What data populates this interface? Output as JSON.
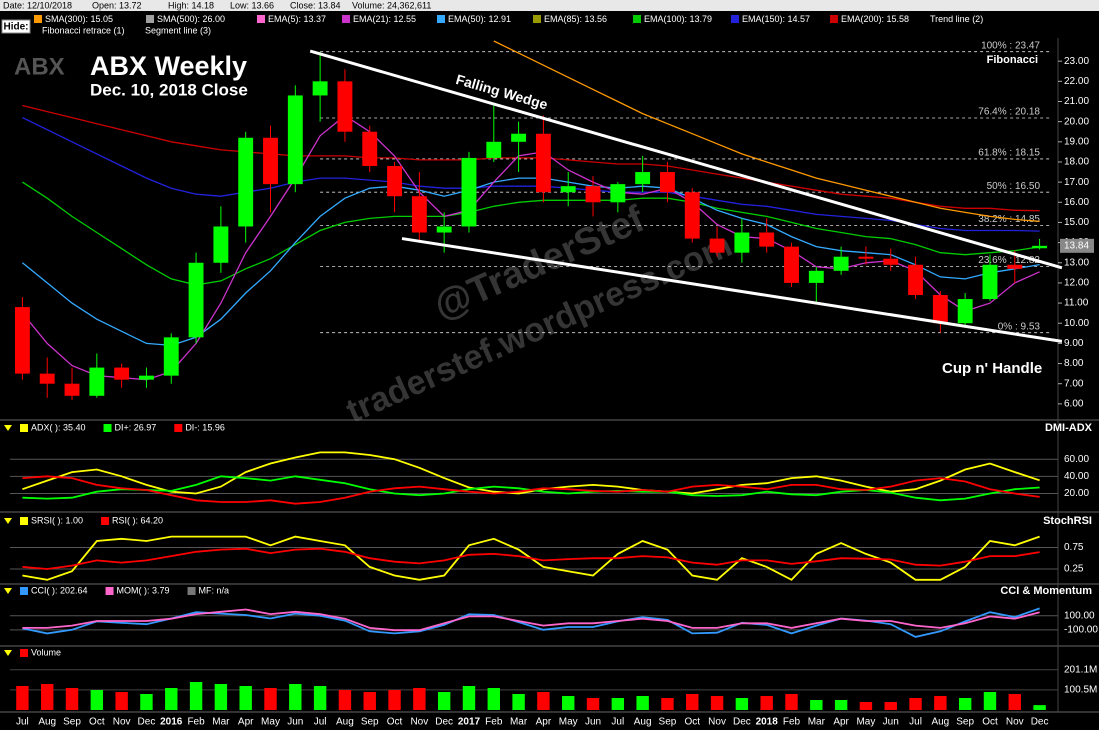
{
  "header": {
    "fields": [
      "Date: 12/10/2018",
      "Open: 13.72",
      "High: 14.18",
      "Low: 13.66",
      "Close: 13.84",
      "Volume: 24,362,611"
    ],
    "hide_button": "Hide:",
    "legend": [
      {
        "label": "SMA(300): 15.05",
        "color": "#ff9900"
      },
      {
        "label": "SMA(500): 26.00",
        "color": "#a0a0a0"
      },
      {
        "label": "EMA(5): 13.37",
        "color": "#ff66cc"
      },
      {
        "label": "EMA(21): 12.55",
        "color": "#cc33cc"
      },
      {
        "label": "EMA(50): 12.91",
        "color": "#33aaff"
      },
      {
        "label": "EMA(85): 13.56",
        "color": "#999900"
      },
      {
        "label": "EMA(100): 13.79",
        "color": "#00cc00"
      },
      {
        "label": "EMA(150): 14.57",
        "color": "#2222dd"
      },
      {
        "label": "EMA(200): 15.58",
        "color": "#cc0000"
      }
    ],
    "tools": [
      "Trend line (2)",
      "Fibonacci retrace (1)",
      "Segment line (3)"
    ]
  },
  "chart_data": [
    {
      "type": "candlestick",
      "symbol": "ABX",
      "title": "ABX Weekly",
      "subtitle": "Dec. 10, 2018 Close",
      "categories": [
        "Jul",
        "Aug",
        "Sep",
        "Oct",
        "Nov",
        "Dec",
        "2016",
        "Feb",
        "Mar",
        "Apr",
        "May",
        "Jun",
        "Jul",
        "Aug",
        "Sep",
        "Oct",
        "Nov",
        "Dec",
        "2017",
        "Feb",
        "Mar",
        "Apr",
        "May",
        "Jun",
        "Jul",
        "Aug",
        "Sep",
        "Oct",
        "Nov",
        "Dec",
        "2018",
        "Feb",
        "Mar",
        "Apr",
        "May",
        "Jun",
        "Jul",
        "Aug",
        "Sep",
        "Oct",
        "Nov",
        "Dec"
      ],
      "open": [
        10.8,
        7.5,
        7.0,
        6.4,
        7.8,
        7.2,
        7.4,
        9.3,
        13.0,
        14.8,
        19.2,
        16.9,
        21.3,
        22.0,
        19.5,
        17.8,
        16.3,
        14.5,
        14.8,
        18.2,
        19.0,
        19.4,
        16.5,
        16.8,
        16.0,
        16.9,
        17.5,
        16.5,
        14.2,
        13.5,
        14.5,
        13.8,
        12.0,
        12.6,
        13.3,
        13.2,
        12.9,
        11.4,
        10.0,
        11.2,
        12.9,
        13.72
      ],
      "high": [
        11.3,
        8.3,
        7.8,
        8.5,
        8.0,
        7.8,
        9.5,
        13.5,
        15.8,
        19.5,
        19.8,
        21.8,
        23.47,
        22.6,
        19.8,
        18.0,
        17.5,
        15.5,
        18.5,
        20.8,
        20.0,
        20.3,
        17.5,
        17.3,
        17.0,
        18.3,
        18.0,
        16.7,
        14.8,
        15.2,
        15.2,
        14.0,
        12.8,
        13.8,
        13.8,
        13.7,
        13.3,
        11.6,
        11.5,
        13.4,
        13.6,
        14.18
      ],
      "low": [
        7.2,
        6.3,
        6.2,
        6.3,
        6.8,
        6.8,
        7.0,
        9.0,
        12.5,
        14.0,
        15.5,
        16.5,
        20.0,
        19.0,
        17.5,
        15.5,
        14.0,
        13.5,
        14.5,
        18.0,
        17.5,
        16.0,
        15.8,
        15.3,
        15.5,
        16.5,
        16.0,
        14.0,
        13.3,
        13.0,
        13.5,
        11.8,
        11.0,
        12.4,
        12.9,
        12.6,
        11.2,
        9.53,
        9.8,
        11.1,
        12.0,
        13.66
      ],
      "close": [
        7.5,
        7.0,
        6.4,
        7.8,
        7.2,
        7.4,
        9.3,
        13.0,
        14.8,
        19.2,
        16.9,
        21.3,
        22.0,
        19.5,
        17.8,
        16.3,
        14.5,
        14.8,
        18.2,
        19.0,
        19.4,
        16.5,
        16.8,
        16.0,
        16.9,
        17.5,
        16.5,
        14.2,
        13.5,
        14.5,
        13.8,
        12.0,
        12.6,
        13.3,
        13.2,
        12.9,
        11.4,
        10.0,
        11.2,
        12.9,
        12.7,
        13.84
      ],
      "up_color": "#00ff00",
      "down_color": "#ff0000",
      "ylim": [
        5.2,
        24.05
      ],
      "yticks": [
        {
          "value": 6,
          "label": "6.00"
        },
        {
          "value": 7,
          "label": "7.00"
        },
        {
          "value": 8,
          "label": "8.00"
        },
        {
          "value": 9,
          "label": "9.00"
        },
        {
          "value": 10,
          "label": "10.00"
        },
        {
          "value": 11,
          "label": "11.00"
        },
        {
          "value": 12,
          "label": "12.00"
        },
        {
          "value": 13,
          "label": "13.00"
        },
        {
          "value": 14,
          "label": "14.00"
        },
        {
          "value": 15,
          "label": "15.00"
        },
        {
          "value": 16,
          "label": "16.00"
        },
        {
          "value": 17,
          "label": "17.00"
        },
        {
          "value": 18,
          "label": "18.00"
        },
        {
          "value": 19,
          "label": "19.00"
        },
        {
          "value": 20,
          "label": "20.00"
        },
        {
          "value": 21,
          "label": "21.00"
        },
        {
          "value": 22,
          "label": "22.00"
        },
        {
          "value": 23,
          "label": "23.00"
        }
      ],
      "last_price": {
        "value": 13.84,
        "label": "13.84"
      },
      "series": [
        {
          "color": "#cc0000",
          "values": [
            20.8,
            20.5,
            20.2,
            19.9,
            19.6,
            19.3,
            19.0,
            18.8,
            18.6,
            18.5,
            18.4,
            18.3,
            18.3,
            18.3,
            18.2,
            18.2,
            18.1,
            18.1,
            18.1,
            18.2,
            18.2,
            18.2,
            18.1,
            18.0,
            17.9,
            17.9,
            17.8,
            17.6,
            17.4,
            17.2,
            17.0,
            16.8,
            16.6,
            16.4,
            16.3,
            16.2,
            16.0,
            15.8,
            15.7,
            15.7,
            15.6,
            15.58
          ]
        },
        {
          "color": "#2222dd",
          "values": [
            20.2,
            19.6,
            19.0,
            18.4,
            17.8,
            17.2,
            16.7,
            16.4,
            16.3,
            16.5,
            16.7,
            17.0,
            17.2,
            17.2,
            17.1,
            17.0,
            16.8,
            16.7,
            16.7,
            16.8,
            16.8,
            16.8,
            16.7,
            16.6,
            16.5,
            16.5,
            16.5,
            16.3,
            16.1,
            15.9,
            15.8,
            15.6,
            15.4,
            15.3,
            15.2,
            15.1,
            14.9,
            14.7,
            14.6,
            14.6,
            14.6,
            14.57
          ]
        },
        {
          "color": "#00cc00",
          "values": [
            17.0,
            16.2,
            15.3,
            14.5,
            13.7,
            12.9,
            12.2,
            11.9,
            12.1,
            12.7,
            13.2,
            13.9,
            14.6,
            15.0,
            15.2,
            15.3,
            15.3,
            15.3,
            15.5,
            15.8,
            16.0,
            16.1,
            16.1,
            16.1,
            16.1,
            16.2,
            16.2,
            16.0,
            15.7,
            15.5,
            15.3,
            15.0,
            14.7,
            14.5,
            14.3,
            14.2,
            13.9,
            13.5,
            13.4,
            13.5,
            13.6,
            13.79
          ]
        },
        {
          "color": "#33aaff",
          "values": [
            13.0,
            12.0,
            11.0,
            10.2,
            9.6,
            9.0,
            8.9,
            9.3,
            10.2,
            11.5,
            12.6,
            14.0,
            15.3,
            16.2,
            16.7,
            16.8,
            16.6,
            16.3,
            16.6,
            17.0,
            17.2,
            17.2,
            17.0,
            16.8,
            16.7,
            16.8,
            16.7,
            16.2,
            15.6,
            15.2,
            14.9,
            14.3,
            13.8,
            13.6,
            13.5,
            13.4,
            12.9,
            12.3,
            12.2,
            12.5,
            12.7,
            12.91
          ]
        },
        {
          "color": "#cc33cc",
          "values": [
            10.5,
            9.0,
            7.9,
            7.4,
            7.3,
            7.2,
            7.6,
            9.0,
            11.0,
            13.5,
            15.3,
            17.2,
            19.3,
            20.3,
            19.5,
            18.3,
            16.5,
            15.3,
            15.6,
            17.0,
            18.3,
            18.5,
            17.6,
            17.0,
            16.5,
            16.4,
            16.7,
            16.0,
            14.9,
            14.3,
            14.2,
            13.6,
            12.8,
            12.7,
            13.0,
            13.1,
            12.6,
            11.4,
            10.6,
            11.0,
            12.0,
            12.55
          ]
        },
        {
          "color": "#ff9900",
          "values": [
            null,
            null,
            null,
            null,
            null,
            null,
            null,
            null,
            null,
            null,
            null,
            null,
            null,
            null,
            null,
            null,
            null,
            null,
            null,
            24.0,
            23.4,
            22.8,
            22.2,
            21.6,
            21.0,
            20.4,
            19.9,
            19.4,
            18.9,
            18.4,
            18.0,
            17.6,
            17.2,
            16.9,
            16.6,
            16.3,
            16.0,
            15.7,
            15.5,
            15.3,
            15.15,
            15.05
          ]
        }
      ],
      "fibonacci": {
        "title": "Fibonacci",
        "levels": [
          {
            "value": 23.47,
            "label": "100% : 23.47"
          },
          {
            "value": 20.18,
            "label": "76.4% : 20.18"
          },
          {
            "value": 18.15,
            "label": "61.8% : 18.15"
          },
          {
            "value": 16.5,
            "label": "50% : 16.50"
          },
          {
            "value": 14.85,
            "label": "38.2% : 14.85"
          },
          {
            "value": 12.82,
            "label": "23.6% : 12.82"
          },
          {
            "value": 9.53,
            "label": "0% : 9.53"
          }
        ]
      },
      "trendlines": [
        {
          "x": [
            11.6,
            41.9
          ],
          "y": [
            23.5,
            12.75
          ]
        },
        {
          "x": [
            15.3,
            41.9
          ],
          "y": [
            14.2,
            9.1
          ]
        }
      ],
      "annotations": [
        "Falling Wedge",
        "Cup n' Handle"
      ],
      "watermarks": [
        "@TraderStef",
        "traderstef.wordpress.com"
      ]
    },
    {
      "type": "line",
      "title": "DMI-ADX",
      "ylim": [
        3,
        86
      ],
      "yticks": [
        {
          "value": 20,
          "label": "20.00"
        },
        {
          "value": 40,
          "label": "40.00"
        },
        {
          "value": 60,
          "label": "60.00"
        }
      ],
      "series": [
        {
          "name": "ADX(   ): 35.40",
          "color": "#ffff00",
          "values": [
            25,
            35,
            45,
            48,
            40,
            30,
            22,
            20,
            28,
            45,
            55,
            62,
            68,
            68,
            65,
            60,
            50,
            38,
            27,
            22,
            20,
            25,
            28,
            30,
            28,
            24,
            22,
            20,
            25,
            30,
            32,
            38,
            40,
            35,
            28,
            22,
            25,
            35,
            48,
            55,
            45,
            35.4
          ]
        },
        {
          "name": "DI+: 26.97",
          "color": "#00ff00",
          "values": [
            15,
            14,
            15,
            22,
            25,
            24,
            23,
            30,
            40,
            38,
            35,
            40,
            36,
            32,
            25,
            20,
            18,
            20,
            25,
            28,
            26,
            22,
            20,
            22,
            23,
            22,
            22,
            18,
            17,
            18,
            22,
            19,
            18,
            22,
            24,
            21,
            15,
            12,
            14,
            20,
            25,
            26.97
          ]
        },
        {
          "name": "DI-: 15.96",
          "color": "#ff0000",
          "values": [
            38,
            40,
            38,
            30,
            26,
            24,
            18,
            12,
            10,
            10,
            12,
            8,
            10,
            15,
            22,
            26,
            28,
            25,
            22,
            20,
            22,
            26,
            25,
            23,
            22,
            24,
            22,
            28,
            30,
            28,
            25,
            30,
            30,
            25,
            24,
            28,
            35,
            38,
            34,
            25,
            20,
            15.96
          ]
        }
      ]
    },
    {
      "type": "line",
      "title": "StochRSI",
      "ylim": [
        -0.05,
        1.2
      ],
      "y2lim": [
        -5,
        120
      ],
      "yticks": [
        {
          "value": 0.25,
          "label": "0.25"
        },
        {
          "value": 0.75,
          "label": "0.75"
        }
      ],
      "series": [
        {
          "name": "SRSI(   ): 1.00",
          "color": "#ffff00",
          "values": [
            0.1,
            0.0,
            0.2,
            0.9,
            0.95,
            0.9,
            1,
            1,
            1,
            1,
            0.8,
            1,
            0.9,
            0.8,
            0.3,
            0.1,
            0.0,
            0.1,
            0.8,
            0.95,
            0.7,
            0.3,
            0.2,
            0.1,
            0.6,
            0.9,
            0.7,
            0.1,
            0.0,
            0.5,
            0.3,
            0.0,
            0.6,
            0.85,
            0.6,
            0.4,
            0.0,
            0.0,
            0.3,
            0.9,
            0.8,
            1.0
          ]
        },
        {
          "name": "RSI(   ): 64.20",
          "color": "#ff0000",
          "axis": "y2",
          "values": [
            30,
            25,
            33,
            45,
            40,
            45,
            55,
            65,
            70,
            72,
            62,
            70,
            72,
            65,
            50,
            42,
            38,
            45,
            58,
            60,
            55,
            45,
            48,
            50,
            50,
            55,
            52,
            40,
            35,
            45,
            45,
            37,
            43,
            50,
            49,
            47,
            35,
            33,
            42,
            55,
            55,
            64.2
          ]
        }
      ]
    },
    {
      "type": "line",
      "title": "CCI & Momentum",
      "ylim": [
        -300,
        350
      ],
      "y2lim": [
        -10,
        10
      ],
      "yticks": [
        {
          "value": 100,
          "label": "100.00"
        },
        {
          "value": -100,
          "label": "-100.00"
        }
      ],
      "series": [
        {
          "name": "CCI(   ): 202.64",
          "color": "#3399ff",
          "values": [
            -80,
            -150,
            -100,
            20,
            0,
            -20,
            60,
            150,
            130,
            110,
            60,
            130,
            100,
            30,
            -120,
            -150,
            -120,
            -30,
            120,
            110,
            10,
            -100,
            -60,
            -60,
            20,
            80,
            40,
            -150,
            -140,
            0,
            -30,
            -150,
            -40,
            60,
            30,
            -20,
            -200,
            -120,
            20,
            150,
            80,
            202.64
          ]
        },
        {
          "name": "MOM(   ): 3.79",
          "color": "#ff66cc",
          "axis": "y2",
          "values": [
            -3,
            -3,
            -2,
            0,
            0,
            0,
            1,
            3,
            4,
            5,
            3,
            4,
            3,
            1,
            -3,
            -4,
            -4,
            -1,
            2,
            2,
            0,
            -2,
            -1,
            -1,
            0,
            1,
            0,
            -3,
            -3,
            -1,
            -1,
            -3,
            -1,
            1,
            0,
            0,
            -2,
            -3,
            -1,
            2,
            1,
            3.79
          ]
        }
      ],
      "extra_legend": [
        {
          "label": "MF: n/a",
          "color": "#777777"
        }
      ]
    },
    {
      "type": "bar",
      "title": "Volume",
      "legend_color": "#ff0000",
      "ylim": [
        0,
        250
      ],
      "yticks": [
        {
          "value": 100.5,
          "label": "100.5M"
        },
        {
          "value": 201.1,
          "label": "201.1M"
        }
      ],
      "values": [
        120,
        130,
        110,
        100,
        90,
        80,
        110,
        140,
        130,
        120,
        110,
        130,
        120,
        100,
        90,
        100,
        110,
        90,
        120,
        110,
        80,
        90,
        70,
        60,
        60,
        70,
        60,
        80,
        70,
        60,
        70,
        80,
        50,
        50,
        40,
        40,
        60,
        70,
        60,
        90,
        80,
        24.362611
      ]
    }
  ]
}
